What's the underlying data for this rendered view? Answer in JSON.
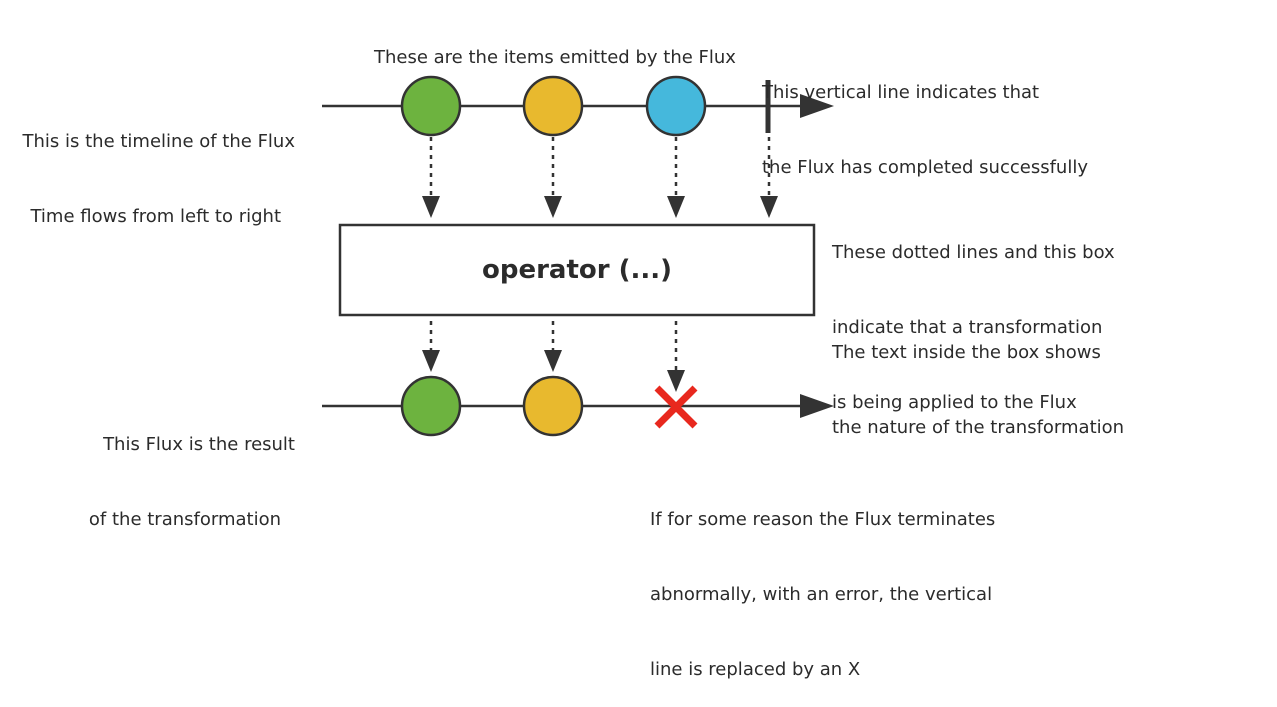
{
  "annotations": {
    "source_timeline": [
      "This is the timeline of the Flux",
      "Time flows from left to right"
    ],
    "items": "These are the items emitted by the Flux",
    "completion": [
      "This vertical line indicates that",
      "the Flux has completed successfully"
    ],
    "transformation": [
      "These dotted lines and this box",
      "indicate that a transformation",
      "is being applied to the Flux"
    ],
    "operator_text": [
      "The text inside the box shows",
      "the nature of the transformation"
    ],
    "result_timeline": [
      "This Flux is the result",
      "of the transformation"
    ],
    "error": [
      "If for some reason the Flux terminates",
      "abnormally, with an error, the vertical",
      "line is replaced by an X"
    ]
  },
  "operator": {
    "label": "operator (...)"
  },
  "colors": {
    "green": "#6db33f",
    "yellow": "#e8b92e",
    "blue": "#45b8dc",
    "error": "#e8281e",
    "stroke": "#333333"
  },
  "source_items": [
    {
      "color": "green",
      "name": "green-item"
    },
    {
      "color": "yellow",
      "name": "yellow-item"
    },
    {
      "color": "blue",
      "name": "blue-item"
    }
  ],
  "result_items": [
    {
      "color": "green",
      "name": "green-item"
    },
    {
      "color": "yellow",
      "name": "yellow-item"
    }
  ],
  "result_termination": "error"
}
